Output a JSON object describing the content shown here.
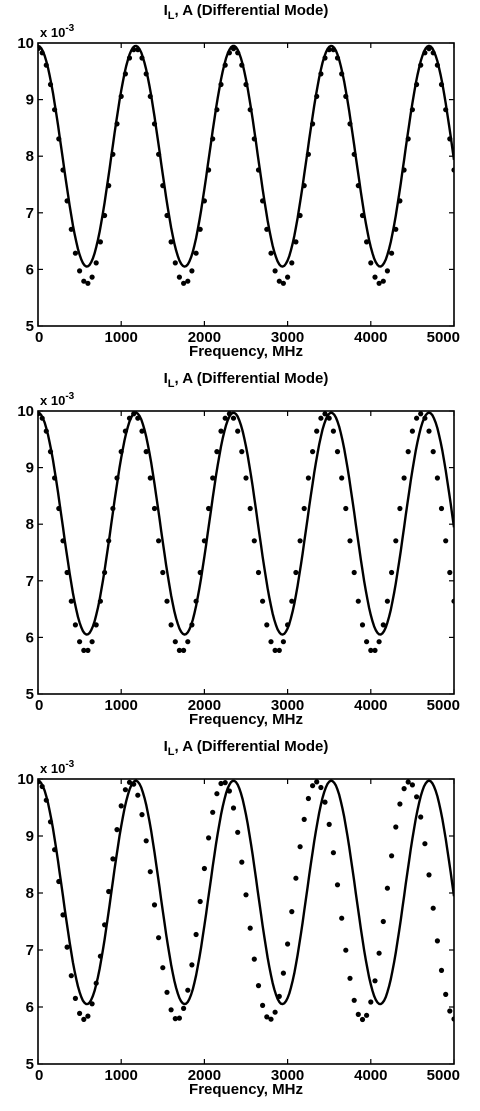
{
  "chart_data": [
    {
      "type": "line",
      "title": "I_L, A (Differential Mode)",
      "title_main": "I",
      "title_sub": "L",
      "title_rest": ", A (Differential Mode)",
      "xlabel": "Frequency, MHz",
      "ylabel": "",
      "y_multiplier": {
        "base": "x 10",
        "exponent": "-3"
      },
      "xlim": [
        0,
        5000
      ],
      "ylim": [
        5,
        10
      ],
      "x_ticks": [
        "0",
        "1000",
        "2000",
        "3000",
        "4000",
        "5000"
      ],
      "y_ticks": [
        "5",
        "6",
        "7",
        "8",
        "9",
        "10"
      ],
      "grid": false,
      "series": [
        {
          "style": "solid-line",
          "model": {
            "max": 9.95,
            "min": 6.05,
            "period": 1175,
            "phase_offset": 0
          },
          "minima": [
            [
              590,
              6.07
            ],
            [
              1765,
              6.2
            ],
            [
              2940,
              6.28
            ],
            [
              4115,
              6.33
            ]
          ]
        },
        {
          "style": "dots",
          "model": {
            "max": 9.9,
            "min": 5.75,
            "period": 1175,
            "phase_offset": 0
          },
          "minima": [
            [
              590,
              5.75
            ],
            [
              1765,
              5.85
            ],
            [
              2940,
              5.95
            ],
            [
              4115,
              6.02
            ]
          ]
        }
      ]
    },
    {
      "type": "line",
      "title": "I_L, A (Differential Mode)",
      "title_main": "I",
      "title_sub": "L",
      "title_rest": ", A (Differential Mode)",
      "xlabel": "Frequency, MHz",
      "ylabel": "",
      "y_multiplier": {
        "base": "x 10",
        "exponent": "-3"
      },
      "xlim": [
        0,
        5000
      ],
      "ylim": [
        5,
        10
      ],
      "x_ticks": [
        "0",
        "1000",
        "2000",
        "3000",
        "4000",
        "5000"
      ],
      "y_ticks": [
        "5",
        "6",
        "7",
        "8",
        "9",
        "10"
      ],
      "grid": false,
      "series": [
        {
          "style": "solid-line",
          "model": {
            "max": 9.97,
            "min": 6.05,
            "period": 1175,
            "phase_offset": 0
          },
          "minima": [
            [
              590,
              6.05
            ],
            [
              1765,
              6.08
            ],
            [
              2940,
              6.1
            ],
            [
              4115,
              6.13
            ]
          ]
        },
        {
          "style": "dots",
          "model": {
            "max": 9.95,
            "min": 5.75,
            "period": 1150,
            "phase_offset": 0
          },
          "minima": [
            [
              575,
              5.75
            ],
            [
              1725,
              5.78
            ],
            [
              2875,
              5.8
            ],
            [
              4025,
              5.83
            ]
          ]
        }
      ]
    },
    {
      "type": "line",
      "title": "I_L, A (Differential Mode)",
      "title_main": "I",
      "title_sub": "L",
      "title_rest": ", A (Differential Mode)",
      "xlabel": "Frequency, MHz",
      "ylabel": "",
      "y_multiplier": {
        "base": "x 10",
        "exponent": "-3"
      },
      "xlim": [
        0,
        5000
      ],
      "ylim": [
        5,
        10
      ],
      "x_ticks": [
        "0",
        "1000",
        "2000",
        "3000",
        "4000",
        "5000"
      ],
      "y_ticks": [
        "5",
        "6",
        "7",
        "8",
        "9",
        "10"
      ],
      "grid": false,
      "series": [
        {
          "style": "solid-line",
          "model": {
            "max": 9.97,
            "min": 6.05,
            "period": 1175,
            "phase_offset": 0
          },
          "minima": [
            [
              590,
              6.05
            ],
            [
              1765,
              6.08
            ],
            [
              2940,
              6.1
            ],
            [
              4115,
              6.12
            ]
          ]
        },
        {
          "style": "dots",
          "model": {
            "max": 9.95,
            "min": 5.78,
            "period": 1115,
            "phase_offset": 0
          },
          "minima": [
            [
              560,
              5.78
            ],
            [
              1675,
              5.8
            ],
            [
              2790,
              5.82
            ],
            [
              3905,
              5.85
            ]
          ]
        }
      ]
    }
  ]
}
